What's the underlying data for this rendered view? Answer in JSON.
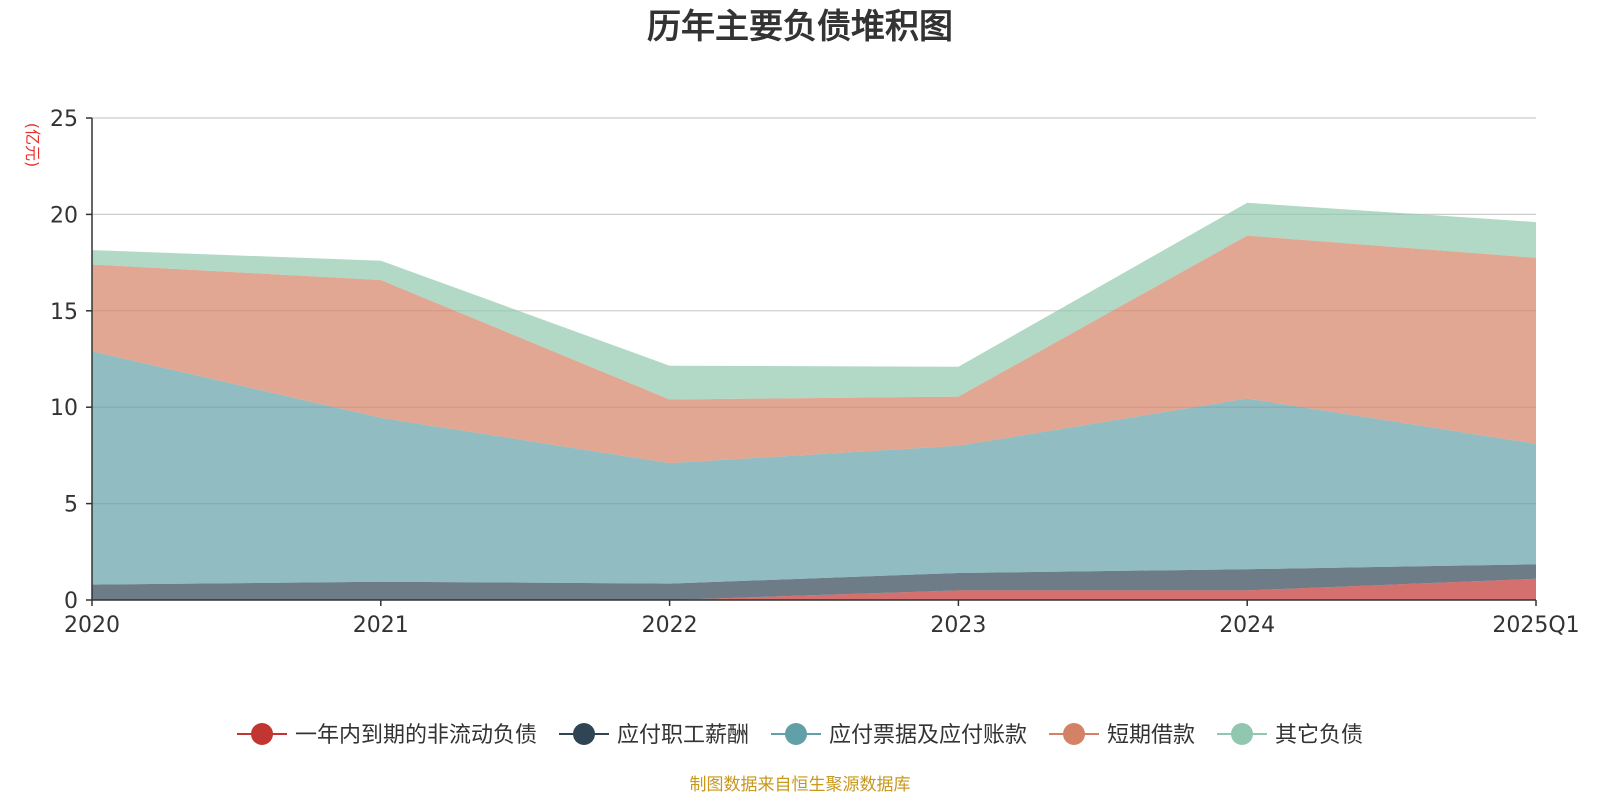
{
  "chart_data": {
    "type": "area",
    "stacked": true,
    "title": "历年主要负债堆积图",
    "unit_label": "(亿元)",
    "x": [
      "2020",
      "2021",
      "2022",
      "2023",
      "2024",
      "2025Q1"
    ],
    "ylim": [
      0,
      25
    ],
    "yticks": [
      "0",
      "5",
      "10",
      "15",
      "20",
      "25"
    ],
    "grid": true,
    "legend_position": "bottom",
    "series": [
      {
        "name": "一年内到期的非流动负债",
        "color": "#c23531",
        "values": [
          0.0,
          0.0,
          0.0,
          0.5,
          0.5,
          1.1
        ]
      },
      {
        "name": "应付职工薪酬",
        "color": "#2f4554",
        "values": [
          0.8,
          0.95,
          0.85,
          0.9,
          1.1,
          0.75
        ]
      },
      {
        "name": "应付票据及应付账款",
        "color": "#61a0a8",
        "values": [
          12.1,
          8.5,
          6.25,
          6.6,
          8.85,
          6.25
        ]
      },
      {
        "name": "短期借款",
        "color": "#d48265",
        "values": [
          4.5,
          7.15,
          3.3,
          2.55,
          8.45,
          9.65
        ]
      },
      {
        "name": "其它负债",
        "color": "#91c7ae",
        "values": [
          0.75,
          1.0,
          1.75,
          1.55,
          1.7,
          1.85
        ]
      }
    ]
  },
  "source_note": "制图数据来自恒生聚源数据库"
}
